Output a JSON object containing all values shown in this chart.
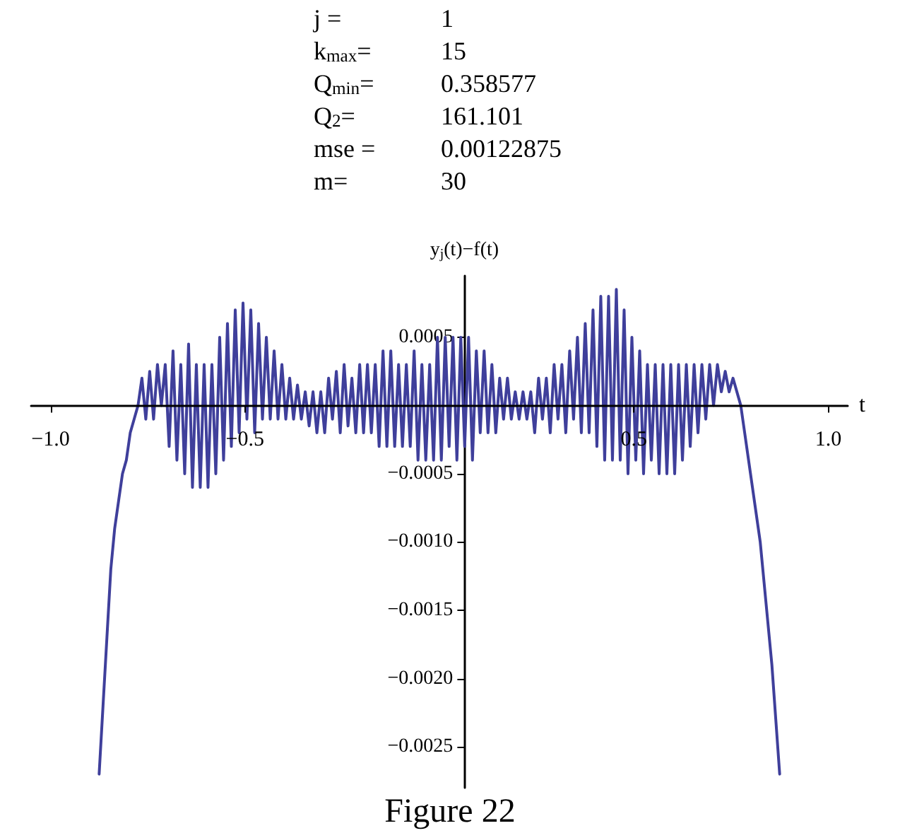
{
  "chart_data": {
    "type": "line",
    "xlabel": "t",
    "ylabel": "y$_{j}$(t)−f(t)",
    "annotations": [
      "j = 1",
      "k$_{max}$= 15",
      "Q$_{min}$= 0.358577",
      "Q$_{2}$= 161.101",
      "mse = 0.00122875",
      "m= 30",
      "Figure 22"
    ],
    "xlim": [
      -1.05,
      1.05
    ],
    "ylim": [
      -0.0028,
      0.00095
    ],
    "xticks": [
      {
        "value": -1,
        "label": "−1.0"
      },
      {
        "value": -0.5,
        "label": "−0.5"
      },
      {
        "value": 0.5,
        "label": "0.5"
      },
      {
        "value": 1,
        "label": "1.0"
      }
    ],
    "yticks": [
      {
        "value": -0.0025,
        "label": "−0.0025"
      },
      {
        "value": -0.002,
        "label": "−0.0020"
      },
      {
        "value": -0.0015,
        "label": "−0.0015"
      },
      {
        "value": -0.001,
        "label": "−0.0010"
      },
      {
        "value": -0.0005,
        "label": "−0.0005"
      },
      {
        "value": 0.0005,
        "label": "0.0005"
      }
    ],
    "grid": false,
    "marker": "none",
    "line_style": "solid",
    "series": [
      {
        "color": "#3f3f9b",
        "x": [
          -0.875,
          -0.865,
          -0.855,
          -0.845,
          -0.835,
          -0.825,
          -0.815,
          -0.805,
          -0.795,
          -0.785,
          -0.775,
          -0.765,
          -0.755,
          -0.745,
          -0.735,
          -0.725,
          -0.715,
          -0.705,
          -0.695,
          -0.685,
          -0.675,
          -0.665,
          -0.655,
          -0.645,
          -0.635,
          -0.625,
          -0.615,
          -0.605,
          -0.595,
          -0.585,
          -0.575,
          -0.565,
          -0.555,
          -0.545,
          -0.535,
          -0.525,
          -0.515,
          -0.505,
          -0.495,
          -0.485,
          -0.475,
          -0.465,
          -0.455,
          -0.445,
          -0.435,
          -0.425,
          -0.415,
          -0.405,
          -0.395,
          -0.385,
          -0.375,
          -0.365,
          -0.355,
          -0.345,
          -0.335,
          -0.325,
          -0.315,
          -0.305,
          -0.295,
          -0.285,
          -0.275,
          -0.265,
          -0.255,
          -0.245,
          -0.235,
          -0.225,
          -0.215,
          -0.205,
          -0.195,
          -0.185,
          -0.175,
          -0.165,
          -0.155,
          -0.145,
          -0.135,
          -0.125,
          -0.115,
          -0.105,
          -0.095,
          -0.085,
          -0.075,
          -0.065,
          -0.055,
          -0.045,
          -0.035,
          -0.025,
          -0.015,
          -0.005,
          0.005,
          0.015,
          0.025,
          0.035,
          0.045,
          0.055,
          0.065,
          0.075,
          0.085,
          0.095,
          0.105,
          0.115,
          0.125,
          0.135,
          0.145,
          0.155,
          0.165,
          0.175,
          0.185,
          0.195,
          0.205,
          0.215,
          0.225,
          0.235,
          0.245,
          0.255,
          0.265,
          0.275,
          0.285,
          0.295,
          0.305,
          0.315,
          0.325,
          0.335,
          0.345,
          0.355,
          0.365,
          0.375,
          0.385,
          0.395,
          0.405,
          0.415,
          0.425,
          0.435,
          0.445,
          0.455,
          0.465,
          0.475,
          0.485,
          0.495,
          0.505,
          0.515,
          0.525,
          0.535,
          0.545,
          0.555,
          0.565,
          0.575,
          0.585,
          0.595,
          0.605,
          0.615,
          0.625,
          0.635,
          0.645,
          0.655,
          0.665,
          0.675,
          0.685,
          0.695,
          0.705,
          0.715,
          0.725,
          0.735,
          0.745,
          0.755,
          0.765,
          0.775,
          0.785,
          0.795,
          0.805,
          0.815,
          0.825,
          0.835,
          0.845,
          0.855,
          0.865,
          0.875
        ],
        "values": [
          -0.0027,
          -0.0022,
          -0.0017,
          -0.0012,
          -0.0009,
          -0.0007,
          -0.0005,
          -0.0004,
          -0.0002,
          -0.0001,
          0.0,
          0.0002,
          -0.0001,
          0.00025,
          -0.0001,
          0.0003,
          0.0,
          0.0003,
          -0.0003,
          0.0004,
          -0.0004,
          0.0003,
          -0.0005,
          0.00045,
          -0.0006,
          0.0003,
          -0.0006,
          0.0003,
          -0.0006,
          0.0003,
          -0.0005,
          0.0005,
          -0.0004,
          0.0006,
          -0.0003,
          0.0007,
          -0.0002,
          0.00075,
          -0.0001,
          0.0007,
          -0.0002,
          0.0006,
          -0.0001,
          0.0005,
          -0.0001,
          0.0004,
          -0.0001,
          0.0003,
          -0.0001,
          0.0002,
          -0.0001,
          0.00015,
          -0.0001,
          0.0001,
          -0.00015,
          0.0001,
          -0.0002,
          0.0001,
          -0.0002,
          0.0002,
          -0.0001,
          0.00025,
          -0.0002,
          0.0003,
          -0.00015,
          0.0002,
          -0.0002,
          0.0003,
          -0.0002,
          0.0003,
          -0.0002,
          0.0003,
          -0.0003,
          0.0004,
          -0.0003,
          0.0004,
          -0.0003,
          0.0003,
          -0.0003,
          0.0003,
          -0.0003,
          0.0004,
          -0.0004,
          0.0003,
          -0.0004,
          0.0003,
          -0.0004,
          0.0005,
          -0.0004,
          0.0005,
          -0.0003,
          0.0005,
          -0.0004,
          0.0005,
          -0.0003,
          0.0005,
          -0.0004,
          0.0004,
          -0.0002,
          0.0004,
          -0.0002,
          0.0003,
          -0.0002,
          0.0002,
          -0.0001,
          0.0002,
          -0.0001,
          0.0001,
          -0.0001,
          0.0001,
          -0.0001,
          0.0001,
          -0.0002,
          0.0002,
          -0.0001,
          0.0002,
          -0.0002,
          0.0003,
          -0.0001,
          0.0003,
          -0.0002,
          0.0004,
          -0.0001,
          0.0005,
          -0.0002,
          0.0006,
          -0.0002,
          0.0007,
          -0.0003,
          0.0008,
          -0.0004,
          0.0008,
          -0.0004,
          0.00085,
          -0.0004,
          0.0007,
          -0.0005,
          0.0005,
          -0.0004,
          0.0004,
          -0.0005,
          0.0003,
          -0.0004,
          0.0003,
          -0.0005,
          0.0003,
          -0.0005,
          0.0003,
          -0.0005,
          0.0003,
          -0.0004,
          0.0003,
          -0.0003,
          0.0003,
          -0.0002,
          0.0003,
          -0.0001,
          0.0003,
          0.0,
          0.0003,
          0.0001,
          0.00025,
          0.0001,
          0.0002,
          0.0001,
          0.0,
          -0.0002,
          -0.0004,
          -0.0006,
          -0.0008,
          -0.001,
          -0.0013,
          -0.0016,
          -0.0019,
          -0.0023,
          -0.0027
        ]
      }
    ]
  }
}
